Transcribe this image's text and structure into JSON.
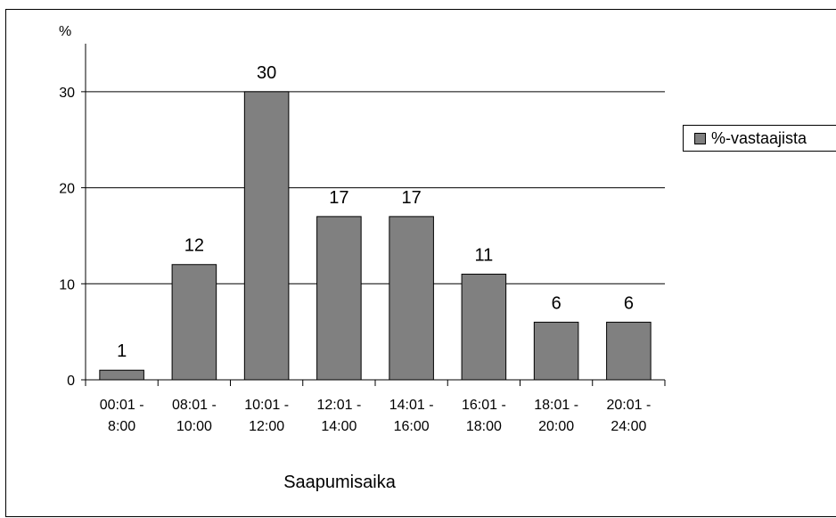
{
  "chart_data": {
    "type": "bar",
    "categories": [
      [
        "00:01 -",
        "8:00"
      ],
      [
        "08:01 -",
        "10:00"
      ],
      [
        "10:01 -",
        "12:00"
      ],
      [
        "12:01 -",
        "14:00"
      ],
      [
        "14:01 -",
        "16:00"
      ],
      [
        "16:01 -",
        "18:00"
      ],
      [
        "18:01 -",
        "20:00"
      ],
      [
        "20:01 -",
        "24:00"
      ]
    ],
    "series": [
      {
        "name": "%-vastaajista",
        "values": [
          1,
          12,
          30,
          17,
          17,
          11,
          6,
          6
        ],
        "color": "#808080"
      }
    ],
    "data_labels": [
      "1",
      "12",
      "30",
      "17",
      "17",
      "11",
      "6",
      "6"
    ],
    "ylabel": "%",
    "xlabel": "Saapumisaika",
    "ylim": [
      0,
      35
    ],
    "yticks": [
      0,
      10,
      20,
      30
    ],
    "grid": true,
    "legend_position": "right"
  }
}
